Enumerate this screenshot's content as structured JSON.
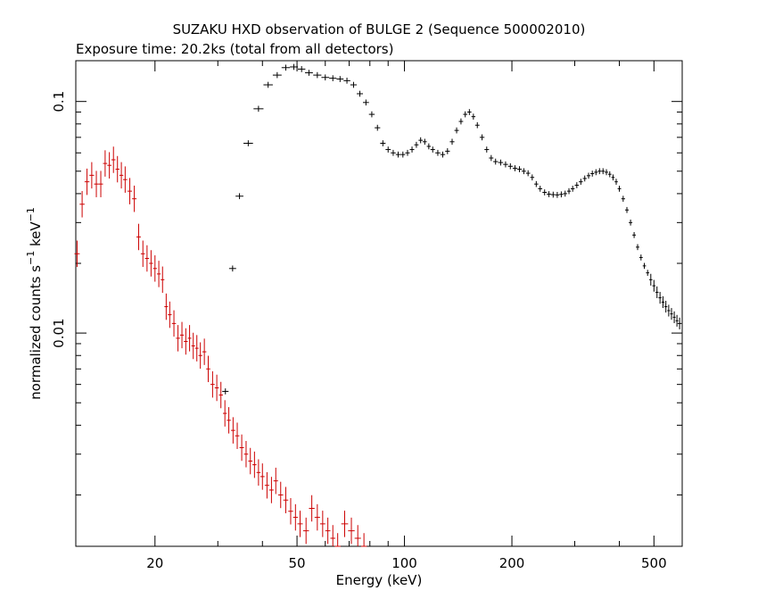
{
  "chart_data": {
    "type": "scatter",
    "title": "SUZAKU HXD observation of BULGE 2 (Sequence 500002010)",
    "subtitle": "Exposure time: 20.2ks (total from all detectors)",
    "xlabel": "Energy (keV)",
    "ylabel": "normalized counts s",
    "ylabel_exp1": "−1",
    "ylabel_unit": " keV",
    "ylabel_exp2": "−1",
    "x_scale": "log",
    "y_scale": "log",
    "xlim": [
      12,
      600
    ],
    "ylim": [
      0.0012,
      0.15
    ],
    "x_ticks": [
      {
        "value": 20,
        "label": "20"
      },
      {
        "value": 50,
        "label": "50"
      },
      {
        "value": 100,
        "label": "100"
      },
      {
        "value": 200,
        "label": "200"
      },
      {
        "value": 500,
        "label": "500"
      }
    ],
    "y_ticks": [
      {
        "value": 0.1,
        "label": "0.1"
      },
      {
        "value": 0.01,
        "label": "0.01"
      }
    ],
    "grid": false,
    "series": [
      {
        "color": "#cc0000",
        "points": [
          [
            12.1,
            0.022
          ],
          [
            12.5,
            0.036
          ],
          [
            12.9,
            0.045
          ],
          [
            13.3,
            0.048
          ],
          [
            13.7,
            0.044
          ],
          [
            14.1,
            0.044
          ],
          [
            14.5,
            0.054
          ],
          [
            14.9,
            0.053
          ],
          [
            15.3,
            0.056
          ],
          [
            15.7,
            0.051
          ],
          [
            16.1,
            0.048
          ],
          [
            16.5,
            0.046
          ],
          [
            17.0,
            0.041
          ],
          [
            17.5,
            0.038
          ],
          [
            18.0,
            0.026
          ],
          [
            18.5,
            0.022
          ],
          [
            19.0,
            0.021
          ],
          [
            19.5,
            0.02
          ],
          [
            20.0,
            0.019
          ],
          [
            20.5,
            0.018
          ],
          [
            21.0,
            0.017
          ],
          [
            21.5,
            0.013
          ],
          [
            22.0,
            0.012
          ],
          [
            22.6,
            0.011
          ],
          [
            23.2,
            0.0095
          ],
          [
            23.8,
            0.0098
          ],
          [
            24.4,
            0.0092
          ],
          [
            25.0,
            0.0095
          ],
          [
            25.6,
            0.0088
          ],
          [
            26.2,
            0.0086
          ],
          [
            26.8,
            0.008
          ],
          [
            27.5,
            0.0083
          ],
          [
            28.2,
            0.007
          ],
          [
            29.0,
            0.006
          ],
          [
            29.8,
            0.0058
          ],
          [
            30.6,
            0.0054
          ],
          [
            31.4,
            0.0045
          ],
          [
            32.2,
            0.0042
          ],
          [
            33.1,
            0.0038
          ],
          [
            34.0,
            0.0036
          ],
          [
            35.0,
            0.0032
          ],
          [
            36.0,
            0.003
          ],
          [
            37.0,
            0.0028
          ],
          [
            38.0,
            0.0027
          ],
          [
            39.0,
            0.0025
          ],
          [
            40.0,
            0.0024
          ],
          [
            41.2,
            0.0022
          ],
          [
            42.4,
            0.0021
          ],
          [
            43.6,
            0.0023
          ],
          [
            45.0,
            0.002
          ],
          [
            46.5,
            0.0019
          ],
          [
            48.0,
            0.0017
          ],
          [
            49.5,
            0.0016
          ],
          [
            51.0,
            0.0015
          ],
          [
            53.0,
            0.0014
          ],
          [
            55.0,
            0.00175
          ],
          [
            57.0,
            0.0016
          ],
          [
            59.0,
            0.0015
          ],
          [
            61.0,
            0.0014
          ],
          [
            63.0,
            0.0013
          ],
          [
            65.0,
            0.0012
          ],
          [
            68.0,
            0.0015
          ],
          [
            71.0,
            0.0014
          ],
          [
            74.0,
            0.0013
          ],
          [
            77.0,
            0.0012
          ]
        ]
      },
      {
        "color": "#000000",
        "points": [
          [
            31.5,
            0.0056
          ],
          [
            33.0,
            0.019
          ],
          [
            34.5,
            0.039
          ],
          [
            36.5,
            0.066
          ],
          [
            39.0,
            0.093
          ],
          [
            41.5,
            0.118
          ],
          [
            44.0,
            0.13
          ],
          [
            46.5,
            0.14
          ],
          [
            49.0,
            0.141
          ],
          [
            51.5,
            0.138
          ],
          [
            54.0,
            0.133
          ],
          [
            57.0,
            0.13
          ],
          [
            60.0,
            0.127
          ],
          [
            63.0,
            0.126
          ],
          [
            66.0,
            0.125
          ],
          [
            69.0,
            0.123
          ],
          [
            72.0,
            0.118
          ],
          [
            75.0,
            0.108
          ],
          [
            78.0,
            0.099
          ],
          [
            81.0,
            0.088
          ],
          [
            84.0,
            0.077
          ],
          [
            87.0,
            0.066
          ],
          [
            90.0,
            0.062
          ],
          [
            93.0,
            0.06
          ],
          [
            96.0,
            0.059
          ],
          [
            99.0,
            0.059
          ],
          [
            102.0,
            0.06
          ],
          [
            105.0,
            0.062
          ],
          [
            108.0,
            0.065
          ],
          [
            111.0,
            0.068
          ],
          [
            114.0,
            0.067
          ],
          [
            117.0,
            0.064
          ],
          [
            120.0,
            0.062
          ],
          [
            124.0,
            0.06
          ],
          [
            128.0,
            0.059
          ],
          [
            132.0,
            0.061
          ],
          [
            136.0,
            0.067
          ],
          [
            140.0,
            0.075
          ],
          [
            144.0,
            0.082
          ],
          [
            148.0,
            0.088
          ],
          [
            152.0,
            0.09
          ],
          [
            156.0,
            0.086
          ],
          [
            160.0,
            0.079
          ],
          [
            165.0,
            0.07
          ],
          [
            170.0,
            0.062
          ],
          [
            175.0,
            0.057
          ],
          [
            180.0,
            0.055
          ],
          [
            186.0,
            0.0545
          ],
          [
            192.0,
            0.0535
          ],
          [
            198.0,
            0.0525
          ],
          [
            204.0,
            0.0515
          ],
          [
            210.0,
            0.051
          ],
          [
            216.0,
            0.05
          ],
          [
            222.0,
            0.049
          ],
          [
            228.0,
            0.047
          ],
          [
            234.0,
            0.044
          ],
          [
            240.0,
            0.042
          ],
          [
            247.0,
            0.0405
          ],
          [
            254.0,
            0.0398
          ],
          [
            261.0,
            0.0396
          ],
          [
            268.0,
            0.0395
          ],
          [
            275.0,
            0.0397
          ],
          [
            282.0,
            0.04
          ],
          [
            289.0,
            0.041
          ],
          [
            296.0,
            0.042
          ],
          [
            304.0,
            0.0435
          ],
          [
            312.0,
            0.045
          ],
          [
            320.0,
            0.0465
          ],
          [
            328.0,
            0.0478
          ],
          [
            336.0,
            0.0488
          ],
          [
            344.0,
            0.0495
          ],
          [
            352.0,
            0.05
          ],
          [
            360.0,
            0.05
          ],
          [
            368.0,
            0.0495
          ],
          [
            376.0,
            0.0485
          ],
          [
            384.0,
            0.047
          ],
          [
            392.0,
            0.045
          ],
          [
            400.0,
            0.042
          ],
          [
            410.0,
            0.038
          ],
          [
            420.0,
            0.034
          ],
          [
            430.0,
            0.03
          ],
          [
            440.0,
            0.0265
          ],
          [
            450.0,
            0.0235
          ],
          [
            460.0,
            0.0212
          ],
          [
            470.0,
            0.0195
          ],
          [
            480.0,
            0.0182
          ],
          [
            490.0,
            0.017
          ],
          [
            500.0,
            0.016
          ],
          [
            510.0,
            0.015
          ],
          [
            520.0,
            0.0142
          ],
          [
            530.0,
            0.0136
          ],
          [
            540.0,
            0.013
          ],
          [
            550.0,
            0.0125
          ],
          [
            560.0,
            0.0121
          ],
          [
            570.0,
            0.0117
          ],
          [
            580.0,
            0.0113
          ],
          [
            590.0,
            0.011
          ]
        ]
      }
    ]
  }
}
